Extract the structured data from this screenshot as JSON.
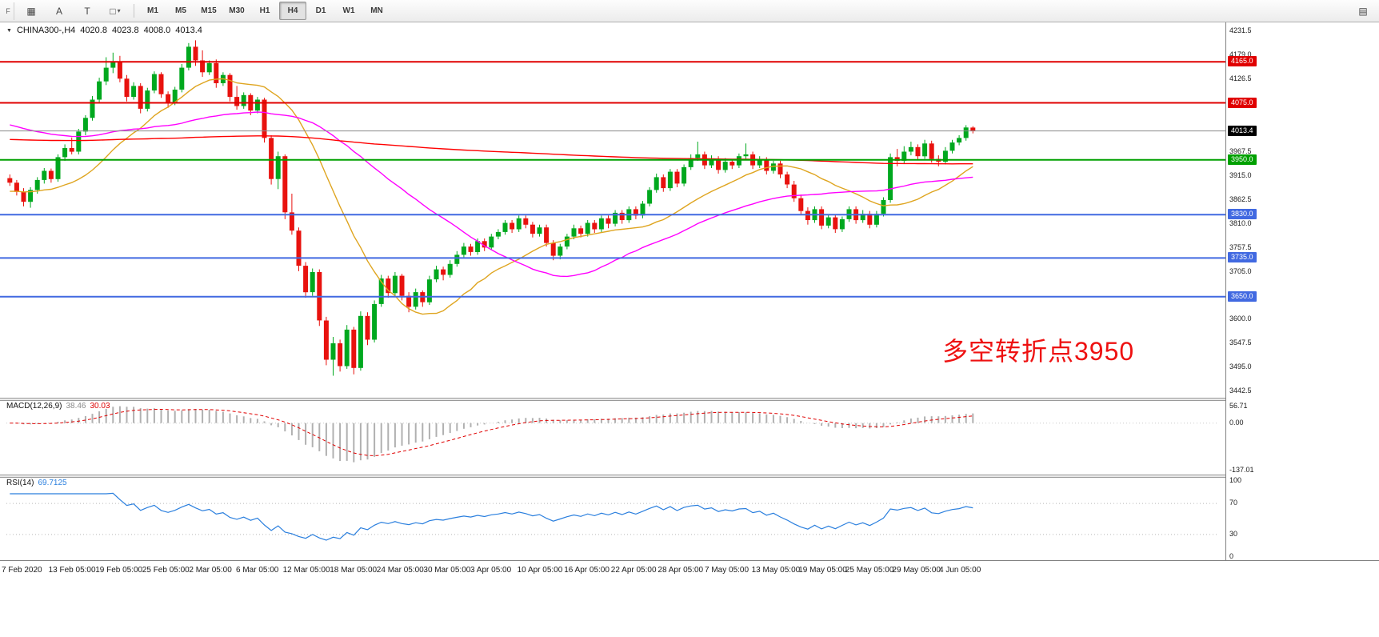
{
  "toolbar": {
    "dock_label": "F",
    "icons": [
      {
        "name": "charts-grid-icon",
        "glyph": "▦"
      },
      {
        "name": "cursor-tool-icon",
        "glyph": "A"
      },
      {
        "name": "text-tool-icon",
        "glyph": "T"
      },
      {
        "name": "shapes-tool-icon",
        "glyph": "□"
      },
      {
        "name": "shapes-dropdown-caret",
        "glyph": "▾"
      }
    ],
    "timeframes": [
      {
        "label": "M1"
      },
      {
        "label": "M5"
      },
      {
        "label": "M15"
      },
      {
        "label": "M30"
      },
      {
        "label": "H1"
      },
      {
        "label": "H4",
        "active": true
      },
      {
        "label": "D1"
      },
      {
        "label": "W1"
      },
      {
        "label": "MN"
      }
    ],
    "right_icon": {
      "name": "window-list-icon",
      "glyph": "▤"
    }
  },
  "chart": {
    "header": {
      "collapse_glyph": "▼",
      "symbol": "CHINA300-,H4",
      "open": "4020.8",
      "high": "4023.8",
      "low": "4008.0",
      "close": "4013.4"
    },
    "annotation": {
      "text": "多空转折点3950",
      "color": "#ee1111"
    },
    "price_ticks": [
      "4231.5",
      "4179.0",
      "4126.5",
      "3967.5",
      "3915.0",
      "3862.5",
      "3810.0",
      "3757.5",
      "3705.0",
      "3600.0",
      "3547.5",
      "3495.0",
      "3442.5"
    ],
    "level_lines": [
      {
        "value": 4165.0,
        "label": "4165.0",
        "color": "#e00000",
        "width": 2
      },
      {
        "value": 4075.0,
        "label": "4075.0",
        "color": "#e00000",
        "width": 2
      },
      {
        "value": 4013.4,
        "label": "4013.4",
        "color": "#8c8c8c",
        "label_bg": "#000000",
        "width": 1
      },
      {
        "value": 3950.0,
        "label": "3950.0",
        "color": "#00a000",
        "width": 2
      },
      {
        "value": 3830.0,
        "label": "3830.0",
        "color": "#4169e1",
        "width": 2
      },
      {
        "value": 3735.0,
        "label": "3735.0",
        "color": "#4169e1",
        "width": 2
      },
      {
        "value": 3650.0,
        "label": "3650.0",
        "color": "#4169e1",
        "width": 2
      }
    ],
    "time_labels": [
      "7 Feb 2020",
      "13 Feb 05:00",
      "19 Feb 05:00",
      "25 Feb 05:00",
      "2 Mar 05:00",
      "6 Mar 05:00",
      "12 Mar 05:00",
      "18 Mar 05:00",
      "24 Mar 05:00",
      "30 Mar 05:00",
      "3 Apr 05:00",
      "10 Apr 05:00",
      "16 Apr 05:00",
      "22 Apr 05:00",
      "28 Apr 05:00",
      "7 May 05:00",
      "13 May 05:00",
      "19 May 05:00",
      "25 May 05:00",
      "29 May 05:00",
      "4 Jun 05:00"
    ]
  },
  "macd": {
    "name": "MACD(12,26,9)",
    "value_main": "38.46",
    "value_signal": "30.03",
    "scale_labels": {
      "top": "56.71",
      "zero": "0.00",
      "bottom": "-137.01"
    },
    "fast": 12,
    "slow": 26,
    "signal": 9
  },
  "rsi": {
    "name": "RSI(14)",
    "value": "69.7125",
    "scale_labels": [
      "100",
      "70",
      "30",
      "0"
    ],
    "levels": [
      70,
      30
    ],
    "period": 14
  },
  "chart_data": {
    "type": "candlestick",
    "symbol": "CHINA300-",
    "timeframe": "H4",
    "title": "CHINA300-,H4 4020.8 4023.8 4008.0 4013.4",
    "price_range": [
      3434,
      4246
    ],
    "bull_color": "#00a81e",
    "bear_color": "#e8120e",
    "moving_averages": [
      {
        "name": "ma-fast",
        "color": "#dfa520",
        "window": 18,
        "seed": 3880
      },
      {
        "name": "ma-medium",
        "color": "#ff00ff",
        "window": 40,
        "seed": 4030
      },
      {
        "name": "ma-slow",
        "color": "#ff0000",
        "window": 300,
        "seed": 3995
      }
    ],
    "ohlc": [
      [
        3910,
        3918,
        3893,
        3900
      ],
      [
        3900,
        3906,
        3872,
        3880
      ],
      [
        3880,
        3888,
        3848,
        3858
      ],
      [
        3858,
        3890,
        3845,
        3884
      ],
      [
        3884,
        3912,
        3876,
        3906
      ],
      [
        3906,
        3932,
        3898,
        3926
      ],
      [
        3926,
        3931,
        3900,
        3908
      ],
      [
        3908,
        3962,
        3902,
        3956
      ],
      [
        3956,
        3984,
        3948,
        3976
      ],
      [
        3976,
        3999,
        3962,
        3968
      ],
      [
        3968,
        4018,
        3962,
        4012
      ],
      [
        4012,
        4048,
        4004,
        4042
      ],
      [
        4042,
        4090,
        4036,
        4082
      ],
      [
        4082,
        4130,
        4074,
        4122
      ],
      [
        4122,
        4175,
        4114,
        4152
      ],
      [
        4152,
        4185,
        4140,
        4166
      ],
      [
        4166,
        4178,
        4120,
        4128
      ],
      [
        4128,
        4136,
        4078,
        4088
      ],
      [
        4088,
        4120,
        4082,
        4112
      ],
      [
        4112,
        4118,
        4052,
        4062
      ],
      [
        4062,
        4108,
        4056,
        4102
      ],
      [
        4102,
        4144,
        4096,
        4138
      ],
      [
        4138,
        4142,
        4086,
        4094
      ],
      [
        4094,
        4100,
        4064,
        4076
      ],
      [
        4076,
        4110,
        4070,
        4104
      ],
      [
        4104,
        4160,
        4098,
        4152
      ],
      [
        4152,
        4206,
        4146,
        4198
      ],
      [
        4198,
        4212,
        4156,
        4168
      ],
      [
        4168,
        4190,
        4132,
        4142
      ],
      [
        4142,
        4168,
        4136,
        4162
      ],
      [
        4162,
        4170,
        4108,
        4118
      ],
      [
        4118,
        4142,
        4112,
        4136
      ],
      [
        4136,
        4140,
        4078,
        4088
      ],
      [
        4088,
        4112,
        4060,
        4068
      ],
      [
        4068,
        4098,
        4062,
        4092
      ],
      [
        4092,
        4096,
        4048,
        4058
      ],
      [
        4058,
        4088,
        4052,
        4082
      ],
      [
        4082,
        4086,
        3988,
        3998
      ],
      [
        3998,
        4004,
        3896,
        3908
      ],
      [
        3908,
        3968,
        3886,
        3958
      ],
      [
        3958,
        3962,
        3820,
        3835
      ],
      [
        3835,
        3876,
        3786,
        3795
      ],
      [
        3795,
        3802,
        3706,
        3718
      ],
      [
        3718,
        3726,
        3648,
        3660
      ],
      [
        3660,
        3712,
        3652,
        3704
      ],
      [
        3704,
        3710,
        3586,
        3598
      ],
      [
        3598,
        3606,
        3500,
        3512
      ],
      [
        3512,
        3562,
        3477,
        3548
      ],
      [
        3548,
        3556,
        3486,
        3498
      ],
      [
        3498,
        3588,
        3492,
        3578
      ],
      [
        3578,
        3584,
        3480,
        3494
      ],
      [
        3494,
        3618,
        3488,
        3608
      ],
      [
        3608,
        3616,
        3544,
        3556
      ],
      [
        3556,
        3642,
        3550,
        3634
      ],
      [
        3634,
        3698,
        3628,
        3690
      ],
      [
        3690,
        3696,
        3648,
        3658
      ],
      [
        3658,
        3704,
        3652,
        3696
      ],
      [
        3696,
        3700,
        3642,
        3652
      ],
      [
        3652,
        3660,
        3616,
        3628
      ],
      [
        3628,
        3668,
        3622,
        3660
      ],
      [
        3660,
        3664,
        3628,
        3638
      ],
      [
        3638,
        3696,
        3632,
        3688
      ],
      [
        3688,
        3718,
        3682,
        3710
      ],
      [
        3710,
        3716,
        3686,
        3698
      ],
      [
        3698,
        3730,
        3692,
        3722
      ],
      [
        3722,
        3750,
        3716,
        3742
      ],
      [
        3742,
        3768,
        3736,
        3760
      ],
      [
        3760,
        3766,
        3740,
        3748
      ],
      [
        3748,
        3778,
        3742,
        3772
      ],
      [
        3772,
        3778,
        3750,
        3758
      ],
      [
        3758,
        3788,
        3752,
        3782
      ],
      [
        3782,
        3798,
        3776,
        3792
      ],
      [
        3792,
        3818,
        3786,
        3812
      ],
      [
        3812,
        3818,
        3790,
        3798
      ],
      [
        3798,
        3828,
        3792,
        3822
      ],
      [
        3822,
        3828,
        3800,
        3808
      ],
      [
        3808,
        3814,
        3780,
        3788
      ],
      [
        3788,
        3808,
        3782,
        3802
      ],
      [
        3802,
        3808,
        3760,
        3768
      ],
      [
        3768,
        3774,
        3730,
        3740
      ],
      [
        3740,
        3766,
        3732,
        3760
      ],
      [
        3760,
        3788,
        3754,
        3782
      ],
      [
        3782,
        3808,
        3776,
        3800
      ],
      [
        3800,
        3806,
        3780,
        3788
      ],
      [
        3788,
        3818,
        3782,
        3812
      ],
      [
        3812,
        3818,
        3790,
        3798
      ],
      [
        3798,
        3828,
        3792,
        3822
      ],
      [
        3822,
        3828,
        3800,
        3810
      ],
      [
        3810,
        3840,
        3804,
        3834
      ],
      [
        3834,
        3840,
        3810,
        3818
      ],
      [
        3818,
        3848,
        3812,
        3842
      ],
      [
        3842,
        3848,
        3820,
        3828
      ],
      [
        3828,
        3860,
        3822,
        3854
      ],
      [
        3854,
        3890,
        3848,
        3884
      ],
      [
        3884,
        3920,
        3878,
        3912
      ],
      [
        3912,
        3918,
        3880,
        3888
      ],
      [
        3888,
        3930,
        3882,
        3924
      ],
      [
        3924,
        3930,
        3890,
        3898
      ],
      [
        3898,
        3940,
        3892,
        3934
      ],
      [
        3934,
        3962,
        3928,
        3954
      ],
      [
        3954,
        3990,
        3948,
        3962
      ],
      [
        3962,
        3968,
        3930,
        3938
      ],
      [
        3938,
        3960,
        3932,
        3952
      ],
      [
        3952,
        3958,
        3920,
        3928
      ],
      [
        3928,
        3954,
        3922,
        3946
      ],
      [
        3946,
        3952,
        3930,
        3938
      ],
      [
        3938,
        3964,
        3932,
        3958
      ],
      [
        3958,
        3986,
        3952,
        3962
      ],
      [
        3962,
        3968,
        3930,
        3938
      ],
      [
        3938,
        3958,
        3932,
        3950
      ],
      [
        3950,
        3956,
        3918,
        3926
      ],
      [
        3926,
        3948,
        3920,
        3942
      ],
      [
        3942,
        3948,
        3910,
        3918
      ],
      [
        3918,
        3924,
        3888,
        3896
      ],
      [
        3896,
        3904,
        3858,
        3866
      ],
      [
        3866,
        3874,
        3830,
        3838
      ],
      [
        3838,
        3846,
        3808,
        3818
      ],
      [
        3818,
        3848,
        3812,
        3842
      ],
      [
        3842,
        3848,
        3798,
        3806
      ],
      [
        3806,
        3830,
        3800,
        3824
      ],
      [
        3824,
        3830,
        3790,
        3798
      ],
      [
        3798,
        3826,
        3792,
        3820
      ],
      [
        3820,
        3848,
        3814,
        3842
      ],
      [
        3842,
        3848,
        3810,
        3818
      ],
      [
        3818,
        3840,
        3812,
        3832
      ],
      [
        3832,
        3838,
        3800,
        3808
      ],
      [
        3808,
        3838,
        3802,
        3832
      ],
      [
        3832,
        3868,
        3826,
        3862
      ],
      [
        3862,
        3964,
        3856,
        3956
      ],
      [
        3956,
        3974,
        3936,
        3948
      ],
      [
        3948,
        3980,
        3942,
        3968
      ],
      [
        3968,
        3990,
        3960,
        3978
      ],
      [
        3978,
        3984,
        3950,
        3958
      ],
      [
        3958,
        3994,
        3952,
        3986
      ],
      [
        3986,
        3992,
        3944,
        3952
      ],
      [
        3952,
        3960,
        3936,
        3946
      ],
      [
        3946,
        3978,
        3940,
        3970
      ],
      [
        3970,
        3994,
        3964,
        3988
      ],
      [
        3988,
        4004,
        3982,
        3998
      ],
      [
        3998,
        4026,
        3992,
        4021
      ],
      [
        4020.8,
        4023.8,
        4008.0,
        4013.4
      ]
    ]
  }
}
